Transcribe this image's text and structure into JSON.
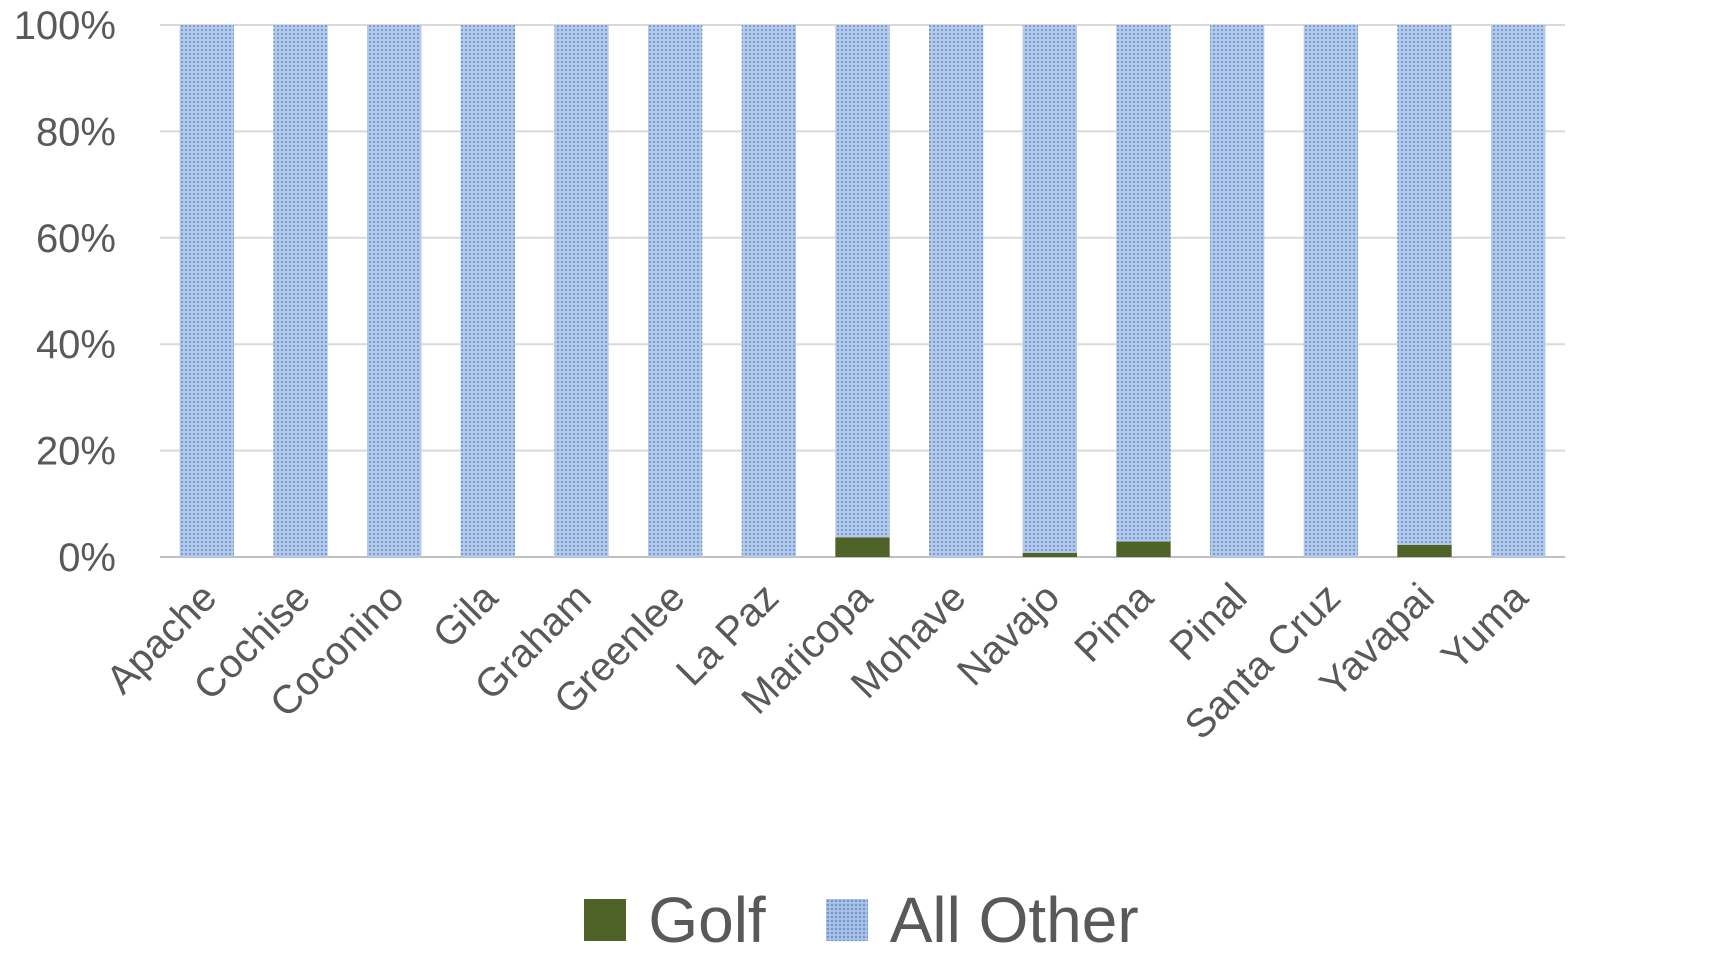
{
  "chart_data": {
    "type": "bar",
    "stacked": true,
    "percent": true,
    "categories": [
      "Apache",
      "Cochise",
      "Coconino",
      "Gila",
      "Graham",
      "Greenlee",
      "La Paz",
      "Maricopa",
      "Mohave",
      "Navajo",
      "Pima",
      "Pinal",
      "Santa Cruz",
      "Yavapai",
      "Yuma"
    ],
    "series": [
      {
        "name": "Golf",
        "color": "#4f6228",
        "values": [
          0,
          0,
          0,
          0,
          0,
          0,
          0,
          3.7,
          0,
          0.8,
          2.9,
          0,
          0,
          2.3,
          0
        ]
      },
      {
        "name": "All Other",
        "color": "#a9c2e6",
        "pattern": "dotted",
        "values": [
          100,
          100,
          100,
          100,
          100,
          100,
          100,
          96.3,
          100,
          99.2,
          97.1,
          100,
          100,
          97.7,
          100
        ]
      }
    ],
    "ylim": [
      0,
      100
    ],
    "yticks": [
      "0%",
      "20%",
      "40%",
      "60%",
      "80%",
      "100%"
    ],
    "grid": true,
    "legend_position": "bottom"
  }
}
